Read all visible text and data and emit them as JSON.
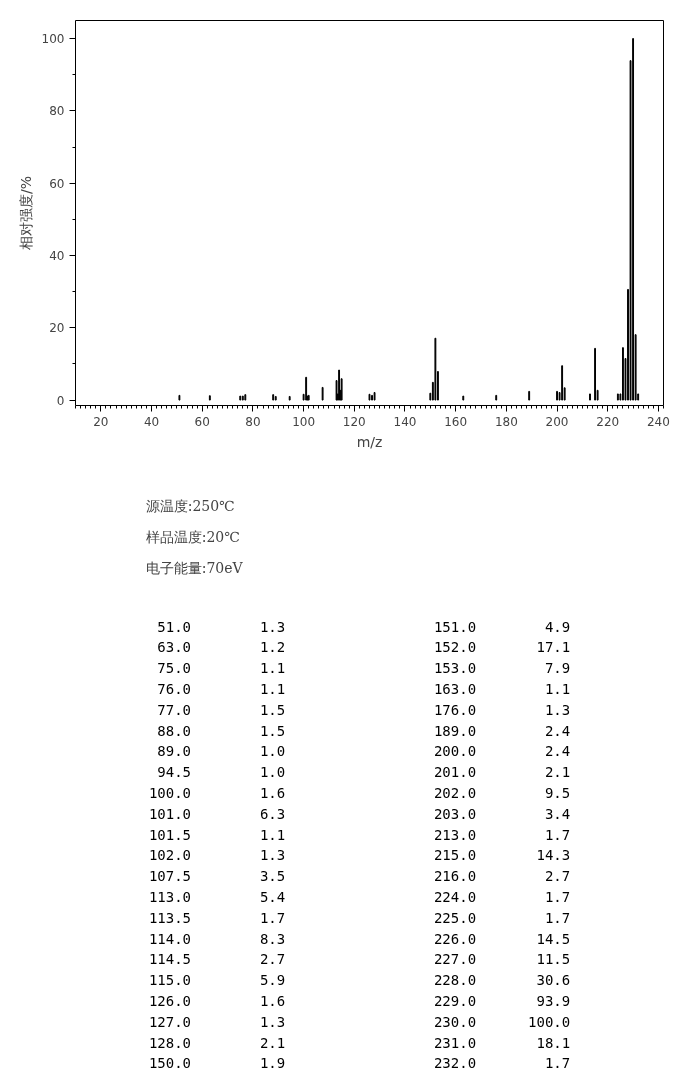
{
  "chart_data": [
    {
      "type": "bar",
      "x": [
        51.0,
        63.0,
        75.0,
        76.0,
        77.0,
        88.0,
        89.0,
        94.5,
        100.0,
        101.0,
        101.5,
        102.0,
        107.5,
        113.0,
        113.5,
        114.0,
        114.5,
        115.0,
        126.0,
        127.0,
        128.0,
        150.0,
        151.0,
        152.0,
        153.0,
        163.0,
        176.0,
        189.0,
        200.0,
        201.0,
        202.0,
        203.0,
        213.0,
        215.0,
        216.0,
        224.0,
        225.0,
        226.0,
        227.0,
        228.0,
        229.0,
        230.0,
        231.0,
        232.0
      ],
      "values": [
        1.3,
        1.2,
        1.1,
        1.1,
        1.5,
        1.5,
        1.0,
        1.0,
        1.6,
        6.3,
        1.1,
        1.3,
        3.5,
        5.4,
        1.7,
        8.3,
        2.7,
        5.9,
        1.6,
        1.3,
        2.1,
        1.9,
        4.9,
        17.1,
        7.9,
        1.1,
        1.3,
        2.4,
        2.4,
        2.1,
        9.5,
        3.4,
        1.7,
        14.3,
        2.7,
        1.7,
        1.7,
        14.5,
        11.5,
        30.6,
        93.9,
        100.0,
        18.1,
        1.7
      ],
      "color": "#000000",
      "xlabel": "m/z",
      "ylabel": "相对强度/%",
      "xlim": [
        10,
        242
      ],
      "xticks": [
        20,
        40,
        60,
        80,
        100,
        120,
        140,
        160,
        180,
        200,
        220,
        240
      ],
      "ylim": [
        -1.5,
        105
      ],
      "yticks": [
        0,
        20,
        40,
        60,
        80,
        100
      ],
      "grid": false
    },
    {
      "type": "other",
      "annotations": [
        "源温度:250℃",
        "样品温度:20℃",
        "电子能量:70eV"
      ],
      "categories": [
        "51.0",
        "63.0",
        "75.0",
        "76.0",
        "77.0",
        "88.0",
        "89.0",
        "94.5",
        "100.0",
        "101.0",
        "101.5",
        "102.0",
        "107.5",
        "113.0",
        "113.5",
        "114.0",
        "114.5",
        "115.0",
        "126.0",
        "127.0",
        "128.0",
        "150.0",
        "151.0",
        "152.0",
        "153.0",
        "163.0",
        "176.0",
        "189.0",
        "200.0",
        "201.0",
        "202.0",
        "203.0",
        "213.0",
        "215.0",
        "216.0",
        "224.0",
        "225.0",
        "226.0",
        "227.0",
        "228.0",
        "229.0",
        "230.0",
        "231.0",
        "232.0"
      ],
      "value_labels": [
        "1.3",
        "1.2",
        "1.1",
        "1.1",
        "1.5",
        "1.5",
        "1.0",
        "1.0",
        "1.6",
        "6.3",
        "1.1",
        "1.3",
        "3.5",
        "5.4",
        "1.7",
        "8.3",
        "2.7",
        "5.9",
        "1.6",
        "1.3",
        "2.1",
        "1.9",
        "4.9",
        "17.1",
        "7.9",
        "1.1",
        "1.3",
        "2.4",
        "2.4",
        "2.1",
        "9.5",
        "3.4",
        "1.7",
        "14.3",
        "2.7",
        "1.7",
        "1.7",
        "14.5",
        "11.5",
        "30.6",
        "93.9",
        "100.0",
        "18.1",
        "1.7"
      ]
    }
  ]
}
